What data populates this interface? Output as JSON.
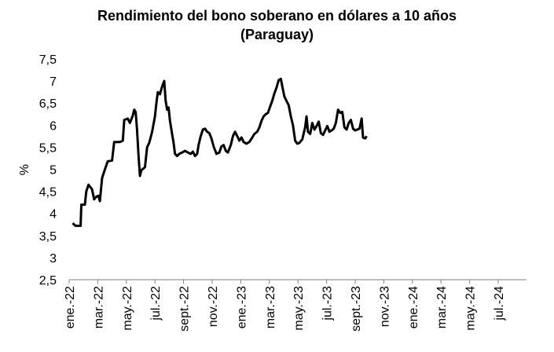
{
  "chart_data": {
    "type": "line",
    "title": "Rendimiento del bono soberano en dólares a 10 años",
    "subtitle": "(Paraguay)",
    "ylabel": "%",
    "xlabel": "",
    "ylim": [
      2.5,
      7.5
    ],
    "yticks": [
      "2,5",
      "3",
      "3,5",
      "4",
      "4,5",
      "5",
      "5,5",
      "6",
      "6,5",
      "7",
      "7,5"
    ],
    "xticks": [
      "ene.-22",
      "mar.-22",
      "may.-22",
      "jul.-22",
      "sept.-22",
      "nov.-22",
      "ene.-23",
      "mar.-23",
      "may.-23",
      "jul.-23",
      "sept.-23",
      "nov.-23",
      "ene.-24",
      "mar.-24",
      "may.-24",
      "jul.-24"
    ],
    "grid": false,
    "legend": "none",
    "color": "#000000",
    "series": [
      {
        "points": [
          [
            0.25,
            3.78
          ],
          [
            0.45,
            3.72
          ],
          [
            0.8,
            3.72
          ],
          [
            0.85,
            4.2
          ],
          [
            1.1,
            4.2
          ],
          [
            1.2,
            4.5
          ],
          [
            1.35,
            4.65
          ],
          [
            1.6,
            4.55
          ],
          [
            1.75,
            4.32
          ],
          [
            1.9,
            4.38
          ],
          [
            2.05,
            4.4
          ],
          [
            2.15,
            4.28
          ],
          [
            2.3,
            4.8
          ],
          [
            2.5,
            5.0
          ],
          [
            2.7,
            5.18
          ],
          [
            3.0,
            5.2
          ],
          [
            3.15,
            5.62
          ],
          [
            3.55,
            5.62
          ],
          [
            3.75,
            5.65
          ],
          [
            3.85,
            6.12
          ],
          [
            4.1,
            6.15
          ],
          [
            4.25,
            6.05
          ],
          [
            4.45,
            6.22
          ],
          [
            4.55,
            6.35
          ],
          [
            4.65,
            6.3
          ],
          [
            4.75,
            5.9
          ],
          [
            4.85,
            5.3
          ],
          [
            4.95,
            4.85
          ],
          [
            5.05,
            4.98
          ],
          [
            5.2,
            5.02
          ],
          [
            5.3,
            5.05
          ],
          [
            5.45,
            5.5
          ],
          [
            5.6,
            5.6
          ],
          [
            5.8,
            5.85
          ],
          [
            6.0,
            6.2
          ],
          [
            6.1,
            6.5
          ],
          [
            6.2,
            6.75
          ],
          [
            6.35,
            6.7
          ],
          [
            6.45,
            6.82
          ],
          [
            6.55,
            6.92
          ],
          [
            6.65,
            7.0
          ],
          [
            6.75,
            6.55
          ],
          [
            6.85,
            6.35
          ],
          [
            6.95,
            6.4
          ],
          [
            7.05,
            6.1
          ],
          [
            7.2,
            5.8
          ],
          [
            7.3,
            5.6
          ],
          [
            7.4,
            5.35
          ],
          [
            7.55,
            5.3
          ],
          [
            7.7,
            5.35
          ],
          [
            7.9,
            5.38
          ],
          [
            8.1,
            5.42
          ],
          [
            8.3,
            5.38
          ],
          [
            8.5,
            5.35
          ],
          [
            8.65,
            5.4
          ],
          [
            8.8,
            5.3
          ],
          [
            8.95,
            5.35
          ],
          [
            9.05,
            5.55
          ],
          [
            9.2,
            5.75
          ],
          [
            9.35,
            5.9
          ],
          [
            9.5,
            5.92
          ],
          [
            9.65,
            5.85
          ],
          [
            9.8,
            5.82
          ],
          [
            9.95,
            5.7
          ],
          [
            10.1,
            5.52
          ],
          [
            10.3,
            5.35
          ],
          [
            10.5,
            5.38
          ],
          [
            10.65,
            5.52
          ],
          [
            10.8,
            5.55
          ],
          [
            10.95,
            5.42
          ],
          [
            11.1,
            5.38
          ],
          [
            11.3,
            5.55
          ],
          [
            11.45,
            5.75
          ],
          [
            11.6,
            5.85
          ],
          [
            11.75,
            5.75
          ],
          [
            11.9,
            5.65
          ],
          [
            12.05,
            5.72
          ],
          [
            12.2,
            5.62
          ],
          [
            12.4,
            5.58
          ],
          [
            12.6,
            5.62
          ],
          [
            12.8,
            5.72
          ],
          [
            12.95,
            5.8
          ],
          [
            13.15,
            5.85
          ],
          [
            13.3,
            5.95
          ],
          [
            13.45,
            6.1
          ],
          [
            13.6,
            6.2
          ],
          [
            13.75,
            6.25
          ],
          [
            13.9,
            6.28
          ],
          [
            14.05,
            6.42
          ],
          [
            14.2,
            6.55
          ],
          [
            14.35,
            6.72
          ],
          [
            14.5,
            6.85
          ],
          [
            14.65,
            7.02
          ],
          [
            14.8,
            7.05
          ],
          [
            14.9,
            6.88
          ],
          [
            15.05,
            6.65
          ],
          [
            15.2,
            6.55
          ],
          [
            15.35,
            6.45
          ],
          [
            15.5,
            6.2
          ],
          [
            15.65,
            6.0
          ],
          [
            15.8,
            5.65
          ],
          [
            15.95,
            5.58
          ],
          [
            16.1,
            5.6
          ],
          [
            16.3,
            5.68
          ],
          [
            16.5,
            5.95
          ],
          [
            16.6,
            6.2
          ],
          [
            16.7,
            5.85
          ],
          [
            16.85,
            5.8
          ],
          [
            17.0,
            6.05
          ],
          [
            17.15,
            5.9
          ],
          [
            17.3,
            5.98
          ],
          [
            17.45,
            6.08
          ],
          [
            17.6,
            5.82
          ],
          [
            17.75,
            5.78
          ],
          [
            17.9,
            5.88
          ],
          [
            18.05,
            5.98
          ],
          [
            18.2,
            5.85
          ],
          [
            18.35,
            5.88
          ],
          [
            18.5,
            5.92
          ],
          [
            18.65,
            6.05
          ],
          [
            18.8,
            6.35
          ],
          [
            18.95,
            6.28
          ],
          [
            19.1,
            6.3
          ],
          [
            19.25,
            5.95
          ],
          [
            19.4,
            5.9
          ],
          [
            19.55,
            6.05
          ],
          [
            19.7,
            6.12
          ],
          [
            19.85,
            5.92
          ],
          [
            20.0,
            5.88
          ],
          [
            20.15,
            5.9
          ],
          [
            20.3,
            5.92
          ],
          [
            20.45,
            6.15
          ],
          [
            20.55,
            5.72
          ],
          [
            20.7,
            5.7
          ],
          [
            20.8,
            5.75
          ]
        ]
      }
    ]
  }
}
